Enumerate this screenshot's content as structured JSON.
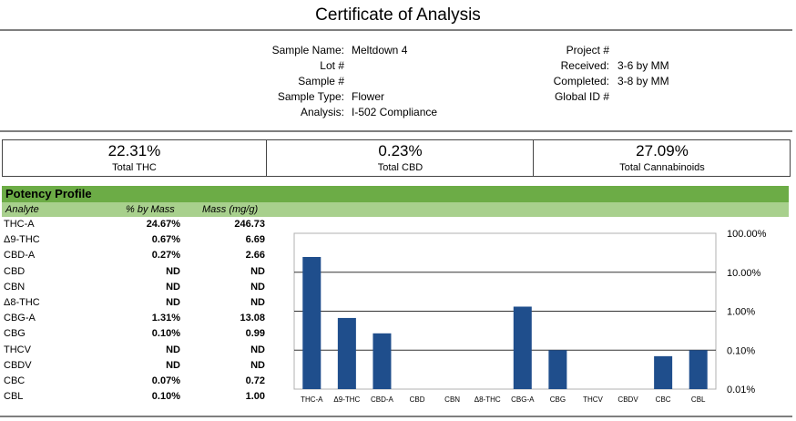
{
  "title": "Certificate of Analysis",
  "sample_info": {
    "left": [
      {
        "label": "Sample Name:",
        "value": "Meltdown 4"
      },
      {
        "label": "Lot #",
        "value": ""
      },
      {
        "label": "Sample #",
        "value": ""
      },
      {
        "label": "Sample Type:",
        "value": "Flower"
      },
      {
        "label": "Analysis:",
        "value": "I-502 Compliance"
      }
    ],
    "right": [
      {
        "label": "Project #",
        "value": ""
      },
      {
        "label": "Received:",
        "value": "3-6 by MM"
      },
      {
        "label": "Completed:",
        "value": "3-8 by MM"
      },
      {
        "label": "Global ID #",
        "value": ""
      }
    ]
  },
  "summary": [
    {
      "value": "22.31%",
      "label": "Total THC"
    },
    {
      "value": "0.23%",
      "label": "Total CBD"
    },
    {
      "value": "27.09%",
      "label": "Total Cannabinoids"
    }
  ],
  "potency": {
    "header": "Potency Profile",
    "columns": [
      "Analyte",
      "% by Mass",
      "Mass (mg/g)"
    ],
    "rows": [
      {
        "analyte": "THC-A",
        "pct": "24.67%",
        "mass": "246.73"
      },
      {
        "analyte": "Δ9-THC",
        "pct": "0.67%",
        "mass": "6.69"
      },
      {
        "analyte": "CBD-A",
        "pct": "0.27%",
        "mass": "2.66"
      },
      {
        "analyte": "CBD",
        "pct": "ND",
        "mass": "ND"
      },
      {
        "analyte": "CBN",
        "pct": "ND",
        "mass": "ND"
      },
      {
        "analyte": "Δ8-THC",
        "pct": "ND",
        "mass": "ND"
      },
      {
        "analyte": "CBG-A",
        "pct": "1.31%",
        "mass": "13.08"
      },
      {
        "analyte": "CBG",
        "pct": "0.10%",
        "mass": "0.99"
      },
      {
        "analyte": "THCV",
        "pct": "ND",
        "mass": "ND"
      },
      {
        "analyte": "CBDV",
        "pct": "ND",
        "mass": "ND"
      },
      {
        "analyte": "CBC",
        "pct": "0.07%",
        "mass": "0.72"
      },
      {
        "analyte": "CBL",
        "pct": "0.10%",
        "mass": "1.00"
      }
    ]
  },
  "chart_data": {
    "type": "bar",
    "categories": [
      "THC-A",
      "Δ9-THC",
      "CBD-A",
      "CBD",
      "CBN",
      "Δ8-THC",
      "CBG-A",
      "CBG",
      "THCV",
      "CBDV",
      "CBC",
      "CBL"
    ],
    "values": [
      24.67,
      0.67,
      0.27,
      null,
      null,
      null,
      1.31,
      0.1,
      null,
      null,
      0.07,
      0.1
    ],
    "y_scale": "log",
    "ylim": [
      0.01,
      100
    ],
    "y_ticks": [
      "100.00%",
      "10.00%",
      "1.00%",
      "0.10%",
      "0.01%"
    ],
    "y_tick_values": [
      100,
      10,
      1,
      0.1,
      0.01
    ],
    "y_axis_side": "right",
    "grid": true,
    "bar_color": "#1f4e8c"
  }
}
